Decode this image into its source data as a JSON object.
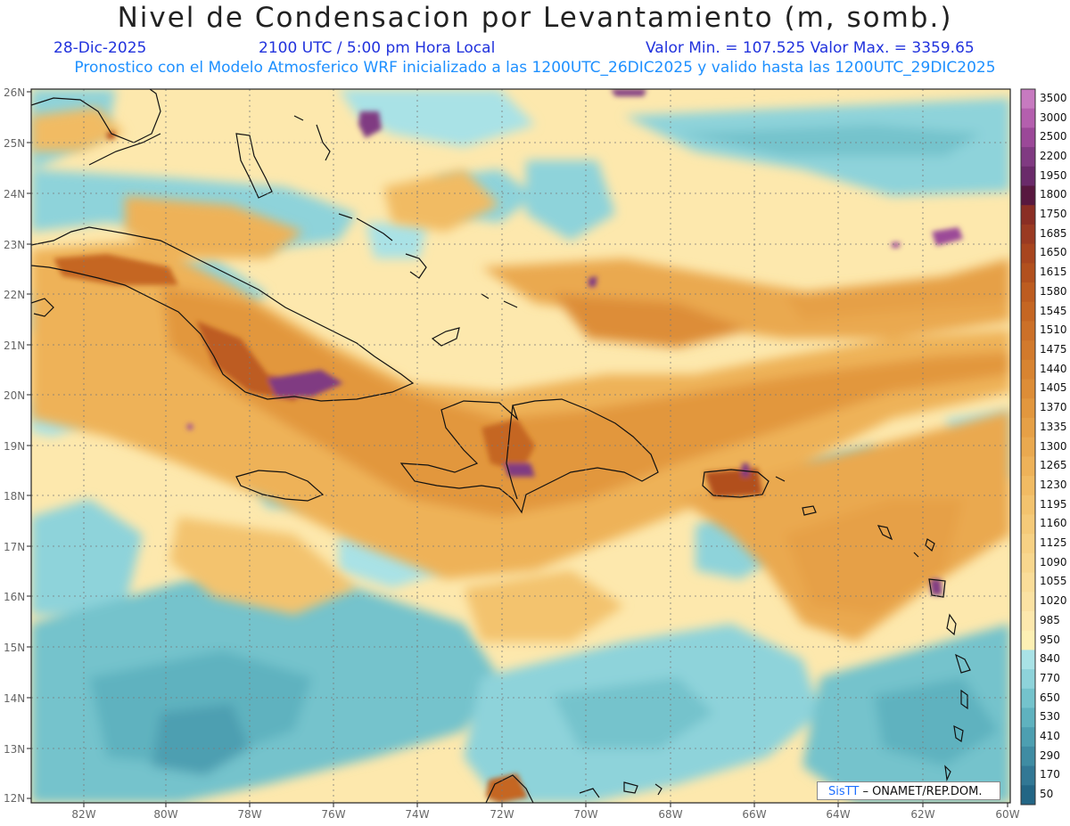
{
  "header": {
    "title": "Nivel de Condensacion por Levantamiento (m, somb.)",
    "date": "28-Dic-2025",
    "time": "2100 UTC / 5:00 pm Hora Local",
    "min_max": "Valor Min. = 107.525  Valor Max. = 3359.65",
    "model_info": "Pronostico con el Modelo Atmosferico WRF inicializado a las 1200UTC_26DIC2025 y valido hasta las  1200UTC_29DIC2025"
  },
  "map": {
    "lat_labels": [
      "26N",
      "25N",
      "24N",
      "23N",
      "22N",
      "21N",
      "20N",
      "19N",
      "18N",
      "17N",
      "16N",
      "15N",
      "14N",
      "13N",
      "12N"
    ],
    "lon_labels": [
      "82W",
      "80W",
      "78W",
      "76W",
      "74W",
      "72W",
      "70W",
      "68W",
      "66W",
      "64W",
      "62W",
      "60W"
    ]
  },
  "legend": {
    "levels": [
      "3500",
      "3000",
      "2500",
      "2200",
      "1950",
      "1800",
      "1750",
      "1685",
      "1650",
      "1615",
      "1580",
      "1545",
      "1510",
      "1475",
      "1440",
      "1405",
      "1370",
      "1335",
      "1300",
      "1265",
      "1230",
      "1195",
      "1160",
      "1125",
      "1090",
      "1055",
      "1020",
      "985",
      "950",
      "840",
      "770",
      "650",
      "530",
      "410",
      "290",
      "170",
      "50"
    ],
    "colors": [
      "#c77ac0",
      "#b45fae",
      "#9b4898",
      "#803a82",
      "#6a2a6a",
      "#58183f",
      "#8a2e24",
      "#9a3a22",
      "#a8451f",
      "#b2501e",
      "#bd5c20",
      "#c56623",
      "#cc7028",
      "#d27a2c",
      "#d88431",
      "#dd8d37",
      "#e2973e",
      "#e6a046",
      "#eaa94f",
      "#eeb259",
      "#f1bb63",
      "#f3c36e",
      "#f5ca79",
      "#f7d184",
      "#f8d78e",
      "#fadd99",
      "#fbe2a3",
      "#fde8ad",
      "#fdf0b4",
      "#a9e2e6",
      "#8ed3da",
      "#74c3cc",
      "#5fb2bf",
      "#4d9fb1",
      "#3f8ca3",
      "#327895",
      "#236685"
    ]
  },
  "credit": {
    "logo": "SisTT",
    "text": "– ONAMET/REP.DOM."
  }
}
